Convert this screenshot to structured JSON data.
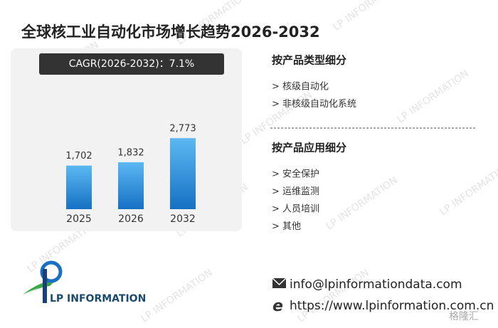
{
  "chart_data": {
    "type": "bar",
    "title": "全球核工业自动化市场增长趋势2026-2032",
    "annotation": "CAGR(2026-2032)：7.1%",
    "categories": [
      "2025",
      "2026",
      "2032"
    ],
    "values": [
      1702,
      1832,
      2773
    ],
    "value_labels": [
      "1,702",
      "1,832",
      "2,773"
    ],
    "color": "#2a8ee0"
  },
  "segments": [
    {
      "title": "按产品类型细分",
      "items": [
        "> 核级自动化",
        "> 非核级自动化系统"
      ]
    },
    {
      "title": "按产品应用细分",
      "items": [
        "> 安全保护",
        "> 运维监测",
        "> 人员培训",
        "> 其他"
      ]
    }
  ],
  "logo": "LP INFORMATION",
  "contact": {
    "email": "info@lpinformationdata.com",
    "website": "https://www.lpinformation.com.cn"
  },
  "watermark": "LP INFORMATION",
  "corner_mark": "格隆汇"
}
